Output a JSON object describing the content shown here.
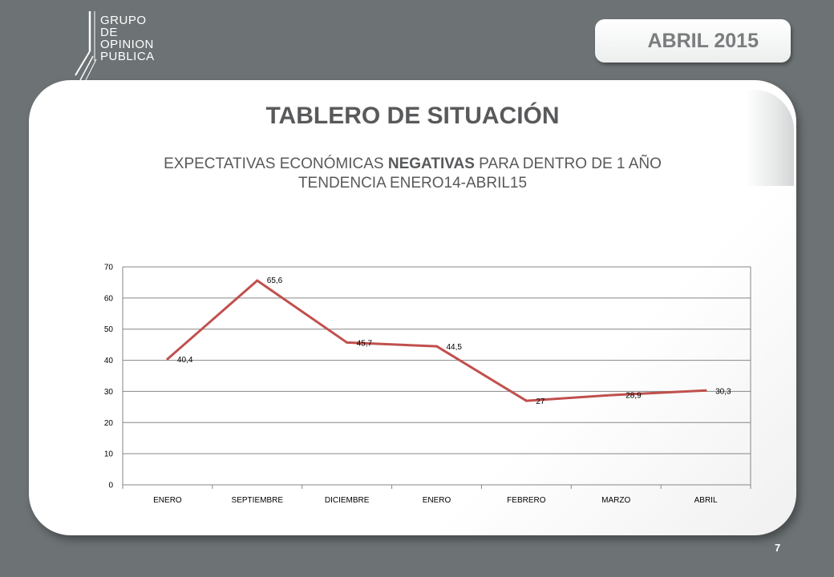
{
  "logo": {
    "lines": [
      "GRUPO",
      "DE",
      "OPINION",
      "PUBLICA"
    ]
  },
  "header": {
    "month_label": "ABRIL 2015"
  },
  "slide": {
    "title": "TABLERO DE SITUACIÓN",
    "subtitle_prefix": "EXPECTATIVAS ECONÓMICAS ",
    "subtitle_emphasis": "NEGATIVAS",
    "subtitle_suffix": " PARA DENTRO DE 1 AÑO",
    "subtitle_line2": "TENDENCIA ENERO14-ABRIL15",
    "page_number": "7"
  },
  "chart_data": {
    "type": "line",
    "categories": [
      "ENERO",
      "SEPTIEMBRE",
      "DICIEMBRE",
      "ENERO",
      "FEBRERO",
      "MARZO",
      "ABRIL"
    ],
    "series": [
      {
        "values": [
          40.4,
          65.6,
          45.7,
          44.5,
          27,
          28.9,
          30.3
        ],
        "labels": [
          "40,4",
          "65,6",
          "45,7",
          "44,5",
          "27",
          "28,9",
          "30,3"
        ]
      }
    ],
    "ylim": [
      0,
      70
    ],
    "yticks": [
      0,
      10,
      20,
      30,
      40,
      50,
      60,
      70
    ],
    "ytick_labels": [
      "0",
      "10",
      "20",
      "30",
      "40",
      "50",
      "60",
      "70"
    ],
    "grid": true,
    "line_color": "#c0504d",
    "title": "",
    "xlabel": "",
    "ylabel": ""
  }
}
